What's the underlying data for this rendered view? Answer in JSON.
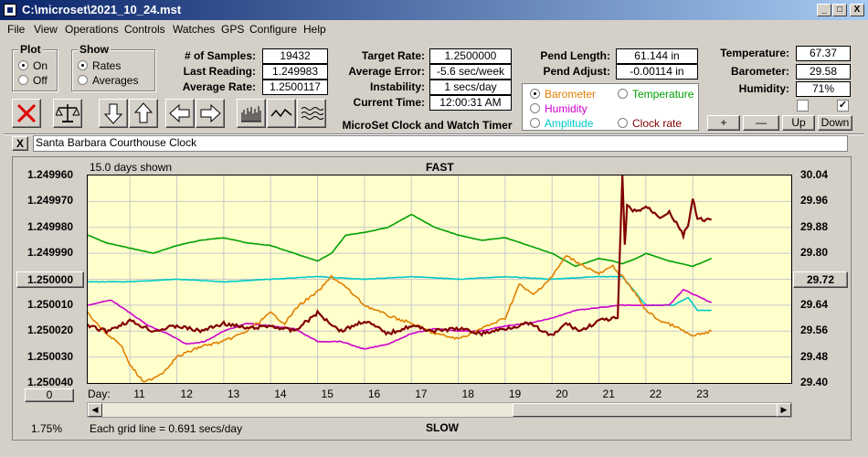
{
  "window": {
    "title": "C:\\microset\\2021_10_24.mst",
    "min": "_",
    "max": "□",
    "close": "X"
  },
  "menu": [
    "File",
    "View",
    "Operations",
    "Controls",
    "Watches",
    "GPS",
    "Configure",
    "Help"
  ],
  "plot_group": {
    "title": "Plot",
    "on": "On",
    "off": "Off",
    "selected": "On"
  },
  "show_group": {
    "title": "Show",
    "rates": "Rates",
    "averages": "Averages",
    "selected": "Rates"
  },
  "stats": {
    "samples_label": "# of Samples:",
    "samples": "19432",
    "last_label": "Last Reading:",
    "last": "1.249983",
    "avg_label": "Average Rate:",
    "avg": "1.2500117",
    "target_label": "Target Rate:",
    "target": "1.2500000",
    "avgerr_label": "Average Error:",
    "avgerr": "-5.6 sec/week",
    "instab_label": "Instability:",
    "instab": "1 secs/day",
    "time_label": "Current Time:",
    "time": "12:00:31 AM",
    "pendlen_label": "Pend Length:",
    "pendlen": "61.144 in",
    "pendadj_label": "Pend Adjust:",
    "pendadj": "-0.00114 in",
    "temp_label": "Temperature:",
    "temp": "67.37",
    "baro_label": "Barometer:",
    "baro": "29.58",
    "hum_label": "Humidity:",
    "hum": "71%"
  },
  "app_title": "MicroSet Clock and Watch Timer",
  "sensor_options": {
    "barometer": "Barometer",
    "temperature": "Temperature",
    "humidity": "Humidity",
    "amplitude": "Amplitude",
    "clock_rate": "Clock rate",
    "selected": "Barometer",
    "colors": {
      "barometer": "#e08000",
      "temperature": "#00a000",
      "humidity": "#cc00cc",
      "amplitude": "#00c8c8",
      "clock_rate": "#800000"
    }
  },
  "scale_buttons": {
    "plus": "+",
    "minus": "—",
    "up": "Up",
    "down": "Down"
  },
  "toolbar_icons": [
    "clear-icon",
    "balance-icon",
    "arrow-down-icon",
    "arrow-up-icon",
    "arrow-left-icon",
    "arrow-right-icon",
    "bars-icon",
    "wave-icon",
    "squiggle-icon"
  ],
  "watch_name": "Santa Barbara Courthouse Clock",
  "close_x": "X",
  "chart_data": {
    "type": "line",
    "title": "FAST",
    "bottom_title": "SLOW",
    "days_shown": "15.0 days shown",
    "grid_note": "Each grid line = 0.691 secs/day",
    "zoom": "1.75%",
    "center_left": "1.250000",
    "center_right": "29.72",
    "offset_button": "0",
    "day_label": "Day:",
    "x_ticks": [
      11,
      12,
      13,
      14,
      15,
      16,
      17,
      18,
      19,
      20,
      21,
      22,
      23
    ],
    "xlim": [
      10.1,
      25.1
    ],
    "y_left_ticks": [
      "1.249960",
      "1.249970",
      "1.249980",
      "1.249990",
      "1.250000",
      "1.250010",
      "1.250020",
      "1.250030",
      "1.250040"
    ],
    "ylim_left": [
      1.24996,
      1.25004
    ],
    "y_right_ticks": [
      "30.04",
      "29.96",
      "29.88",
      "29.80",
      "29.72",
      "29.64",
      "29.56",
      "29.48",
      "29.40"
    ],
    "ylim_right": [
      29.4,
      30.04
    ],
    "grid": true,
    "series": [
      {
        "name": "Temperature",
        "color": "#00a000",
        "x": [
          10.1,
          10.5,
          11.0,
          11.5,
          12.0,
          12.5,
          13.0,
          13.5,
          14.0,
          14.5,
          15.0,
          15.3,
          15.6,
          16.0,
          16.5,
          17.0,
          17.5,
          18.0,
          18.5,
          19.0,
          19.5,
          20.0,
          20.5,
          21.0,
          21.3,
          21.5,
          21.8,
          22.0,
          22.5,
          23.0,
          23.4
        ],
        "y": [
          1.249983,
          1.249986,
          1.249988,
          1.24999,
          1.249987,
          1.249985,
          1.249984,
          1.249986,
          1.249987,
          1.24999,
          1.249993,
          1.24999,
          1.249983,
          1.249982,
          1.24998,
          1.249975,
          1.24998,
          1.249983,
          1.249985,
          1.249984,
          1.249987,
          1.24999,
          1.249995,
          1.249992,
          1.249993,
          1.249994,
          1.249992,
          1.24999,
          1.249993,
          1.249995,
          1.249992
        ]
      },
      {
        "name": "Amplitude",
        "color": "#00c8c8",
        "x": [
          10.1,
          11.0,
          12.0,
          13.0,
          14.0,
          15.0,
          16.0,
          17.0,
          18.0,
          19.0,
          20.0,
          21.0,
          21.5,
          22.0,
          22.6,
          22.9,
          23.1,
          23.4
        ],
        "y": [
          1.250001,
          1.250001,
          1.25,
          1.250001,
          1.25,
          1.249999,
          1.25,
          1.249999,
          1.25,
          1.249999,
          1.25,
          1.249999,
          1.249999,
          1.25001,
          1.25001,
          1.250007,
          1.250012,
          1.250012
        ]
      },
      {
        "name": "Humidity",
        "color": "#cc00cc",
        "x": [
          10.1,
          10.6,
          11.0,
          11.4,
          11.8,
          12.2,
          12.6,
          13.0,
          13.5,
          14.0,
          14.5,
          15.0,
          15.5,
          16.0,
          16.5,
          17.0,
          17.5,
          18.0,
          18.5,
          19.0,
          19.5,
          20.0,
          20.5,
          21.0,
          21.5,
          22.0,
          22.5,
          22.8,
          23.4
        ],
        "y": [
          1.25001,
          1.250008,
          1.250013,
          1.250018,
          1.250021,
          1.250025,
          1.250024,
          1.25002,
          1.250017,
          1.250018,
          1.250019,
          1.250024,
          1.250024,
          1.250027,
          1.250025,
          1.250021,
          1.250019,
          1.25002,
          1.25002,
          1.250018,
          1.250017,
          1.250015,
          1.250012,
          1.250011,
          1.25001,
          1.25001,
          1.25001,
          1.250004,
          1.250009
        ]
      },
      {
        "name": "Barometer",
        "color": "#e08000",
        "x": [
          10.1,
          10.5,
          10.8,
          11.0,
          11.3,
          11.7,
          12.0,
          12.5,
          13.0,
          13.5,
          14.0,
          14.3,
          14.6,
          15.0,
          15.3,
          15.6,
          16.0,
          16.5,
          17.0,
          17.5,
          18.0,
          18.5,
          19.0,
          19.3,
          19.6,
          20.0,
          20.3,
          20.6,
          21.0,
          21.3,
          21.5,
          21.8,
          22.0,
          22.3,
          22.6,
          23.0,
          23.2,
          23.4
        ],
        "y": [
          1.250013,
          1.250021,
          1.250025,
          1.250033,
          1.25004,
          1.250036,
          1.25003,
          1.250026,
          1.250024,
          1.25002,
          1.250013,
          1.250017,
          1.25001,
          1.250005,
          1.249999,
          1.250003,
          1.25001,
          1.250014,
          1.250017,
          1.250021,
          1.250023,
          1.250019,
          1.250015,
          1.250002,
          1.250006,
          1.249999,
          1.249991,
          1.249994,
          1.249998,
          1.249995,
          1.249999,
          1.250006,
          1.250012,
          1.250016,
          1.250018,
          1.250022,
          1.250021,
          1.25002
        ]
      },
      {
        "name": "Clock rate",
        "color": "#800000",
        "x": [
          10.1,
          10.5,
          11.0,
          11.5,
          12.0,
          12.5,
          13.0,
          13.5,
          14.0,
          14.5,
          15.0,
          15.5,
          16.0,
          16.5,
          17.0,
          17.5,
          18.0,
          18.5,
          19.0,
          19.5,
          20.0,
          20.3,
          20.6,
          21.0,
          21.4,
          21.5,
          21.55,
          21.6,
          21.8,
          22.0,
          22.3,
          22.5,
          22.8,
          22.9,
          23.0,
          23.1,
          23.4
        ],
        "y": [
          1.250018,
          1.25002,
          1.250016,
          1.25002,
          1.250018,
          1.25002,
          1.250017,
          1.250019,
          1.250018,
          1.25002,
          1.250013,
          1.25002,
          1.250016,
          1.250021,
          1.250018,
          1.25002,
          1.250019,
          1.250021,
          1.250019,
          1.250017,
          1.250022,
          1.250017,
          1.25002,
          1.250016,
          1.250015,
          1.24996,
          1.249987,
          1.249972,
          1.249974,
          1.249972,
          1.249976,
          1.249974,
          1.249983,
          1.249979,
          1.249969,
          1.249977,
          1.249977
        ]
      }
    ]
  }
}
